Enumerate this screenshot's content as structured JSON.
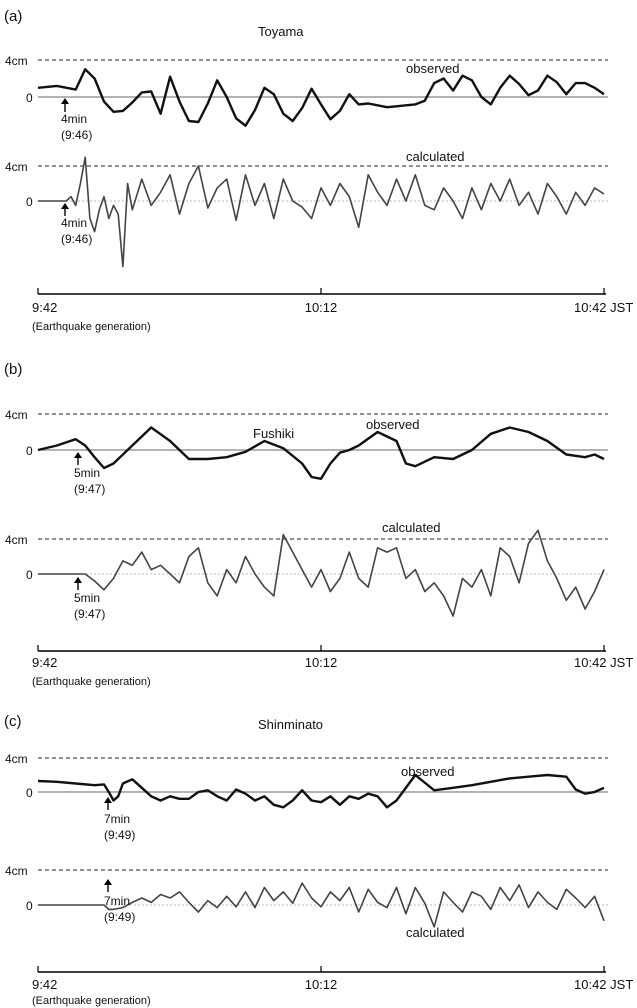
{
  "figure": {
    "panels": [
      {
        "id": "a",
        "label": "(a)",
        "station": "Toyama",
        "y_tick_top": "4cm",
        "y_tick_zero": "0",
        "observed_label": "observed",
        "calculated_label": "calculated",
        "arrival_observed": {
          "text": "4min",
          "time": "(9:46)"
        },
        "arrival_calculated": {
          "text": "4min",
          "time": "(9:46)"
        },
        "x_labels": [
          "9:42",
          "10:12",
          "10:42 JST"
        ],
        "x_note": "(Earthquake generation)"
      },
      {
        "id": "b",
        "label": "(b)",
        "station": "Fushiki",
        "y_tick_top": "4cm",
        "y_tick_zero": "0",
        "observed_label": "observed",
        "calculated_label": "calculated",
        "arrival_observed": {
          "text": "5min",
          "time": "(9:47)"
        },
        "arrival_calculated": {
          "text": "5min",
          "time": "(9:47)"
        },
        "x_labels": [
          "9:42",
          "10:12",
          "10:42 JST"
        ],
        "x_note": "(Earthquake generation)"
      },
      {
        "id": "c",
        "label": "(c)",
        "station": "Shinminato",
        "y_tick_top": "4cm",
        "y_tick_zero": "0",
        "observed_label": "observed",
        "calculated_label": "calculated",
        "arrival_observed": {
          "text": "7min",
          "time": "(9:49)"
        },
        "arrival_calculated": {
          "text": "7min",
          "time": "(9:49)"
        },
        "x_labels": [
          "9:42",
          "10:12",
          "10:42 JST"
        ],
        "x_note": "(Earthquake generation)"
      }
    ]
  },
  "chart_data": [
    {
      "type": "line",
      "title": "Toyama",
      "x_unit": "min after 9:42",
      "xlim": [
        0,
        60
      ],
      "y_unit": "cm",
      "x_ticks": [
        "9:42",
        "10:12",
        "10:42 JST"
      ],
      "series": [
        {
          "name": "observed",
          "x": [
            0,
            2,
            4,
            5,
            6,
            7,
            8,
            9,
            10,
            11,
            12,
            13,
            14,
            15,
            16,
            17,
            18,
            19,
            20,
            21,
            22,
            23,
            24,
            25,
            26,
            27,
            28,
            29,
            30,
            31,
            32,
            33,
            34,
            35,
            36,
            37,
            38,
            39,
            40,
            41,
            42,
            43,
            44,
            45,
            46,
            47,
            48,
            49,
            50,
            51,
            52,
            53,
            54,
            55,
            56,
            57,
            58,
            59,
            60
          ],
          "y": [
            1.0,
            1.2,
            0.8,
            3.0,
            2.0,
            -0.5,
            -1.6,
            -1.5,
            -0.6,
            0.5,
            0.6,
            -1.8,
            2.2,
            -0.5,
            -2.6,
            -2.7,
            -0.7,
            1.8,
            0.0,
            -2.3,
            -3.1,
            -1.4,
            1.0,
            0.3,
            -1.8,
            -2.6,
            -1.2,
            0.9,
            -0.8,
            -2.4,
            -1.5,
            0.3,
            -0.8,
            -0.7,
            -0.9,
            -1.1,
            -1.0,
            -0.9,
            -0.8,
            -0.4,
            1.5,
            2.0,
            0.7,
            2.3,
            1.8,
            0.0,
            -0.8,
            1.0,
            2.3,
            1.4,
            0.2,
            0.7,
            2.3,
            1.6,
            0.3,
            1.5,
            1.5,
            1.0,
            0.3
          ]
        },
        {
          "name": "calculated",
          "x": [
            0,
            1,
            2,
            3,
            3.5,
            4,
            4.5,
            5,
            5.5,
            6,
            6.5,
            7,
            7.5,
            8,
            8.5,
            9,
            9.5,
            10,
            11,
            12,
            13,
            14,
            15,
            16,
            17,
            18,
            19,
            20,
            21,
            22,
            23,
            24,
            25,
            26,
            27,
            28,
            29,
            30,
            31,
            32,
            33,
            34,
            35,
            36,
            37,
            38,
            39,
            40,
            41,
            42,
            43,
            44,
            45,
            46,
            47,
            48,
            49,
            50,
            51,
            52,
            53,
            54,
            55,
            56,
            57,
            58,
            59,
            60
          ],
          "y": [
            0,
            0,
            0,
            0,
            0.5,
            -0.5,
            2.0,
            5.0,
            -2.0,
            -3.5,
            -1.0,
            0.5,
            -2.0,
            -0.5,
            -1.5,
            -7.5,
            2.0,
            -1.0,
            2.5,
            -0.5,
            1.0,
            3.0,
            -1.5,
            2.0,
            4.0,
            -0.8,
            1.5,
            2.5,
            -2.2,
            3.0,
            -0.5,
            2.0,
            -2.0,
            2.5,
            0.0,
            -0.7,
            -2.0,
            1.5,
            -0.5,
            2.0,
            0.5,
            -3.0,
            3.0,
            1.0,
            -0.5,
            2.5,
            0.0,
            3.0,
            -0.5,
            -1.0,
            1.5,
            0.0,
            -2.0,
            1.5,
            -1.0,
            2.0,
            0.0,
            2.5,
            -0.5,
            1.0,
            -1.5,
            2.0,
            0.5,
            -1.5,
            1.0,
            -0.5,
            1.5,
            0.8
          ]
        }
      ]
    },
    {
      "type": "line",
      "title": "Fushiki",
      "x_unit": "min after 9:42",
      "xlim": [
        0,
        60
      ],
      "y_unit": "cm",
      "x_ticks": [
        "9:42",
        "10:12",
        "10:42 JST"
      ],
      "series": [
        {
          "name": "observed",
          "x": [
            0,
            2,
            4,
            5,
            6,
            7,
            8,
            10,
            12,
            14,
            16,
            18,
            20,
            22,
            24,
            26,
            28,
            29,
            30,
            31,
            32,
            33,
            34,
            36,
            38,
            39,
            40,
            42,
            44,
            46,
            48,
            50,
            52,
            54,
            56,
            58,
            59,
            60
          ],
          "y": [
            0,
            0.5,
            1.2,
            0.5,
            -0.8,
            -2.0,
            -1.5,
            0.5,
            2.5,
            1.0,
            -1.0,
            -1.0,
            -0.8,
            -0.2,
            1.0,
            0.2,
            -1.5,
            -3.0,
            -3.2,
            -1.5,
            -0.3,
            0.0,
            0.5,
            2.0,
            1.0,
            -1.5,
            -1.8,
            -0.8,
            -1.0,
            0.0,
            1.8,
            2.5,
            2.0,
            1.0,
            -0.5,
            -0.8,
            -0.5,
            -1.0
          ]
        },
        {
          "name": "calculated",
          "x": [
            0,
            2,
            4,
            5,
            6,
            7,
            8,
            9,
            10,
            11,
            12,
            13,
            14,
            15,
            16,
            17,
            18,
            19,
            20,
            21,
            22,
            23,
            24,
            25,
            26,
            27,
            28,
            29,
            30,
            31,
            32,
            33,
            34,
            35,
            36,
            37,
            38,
            39,
            40,
            41,
            42,
            43,
            44,
            45,
            46,
            47,
            48,
            49,
            50,
            51,
            52,
            53,
            54,
            55,
            56,
            57,
            58,
            59,
            60
          ],
          "y": [
            0,
            0,
            0,
            0,
            -0.8,
            -1.8,
            -0.5,
            1.5,
            1.0,
            2.5,
            0.5,
            1.0,
            0.0,
            -1.0,
            2.0,
            3.0,
            -1.0,
            -2.5,
            0.5,
            -1.0,
            2.0,
            0.0,
            -1.5,
            -2.5,
            4.5,
            2.5,
            0.5,
            -1.5,
            0.5,
            -2.0,
            -0.5,
            2.5,
            -0.5,
            -1.5,
            3.0,
            2.5,
            3.0,
            -0.5,
            0.5,
            -2.0,
            -1.0,
            -2.5,
            -4.8,
            -0.5,
            -1.5,
            0.5,
            -2.5,
            3.0,
            2.0,
            -1.0,
            3.5,
            5.0,
            1.5,
            -0.5,
            -3.0,
            -1.5,
            -4.0,
            -2.0,
            0.5
          ]
        }
      ]
    },
    {
      "type": "line",
      "title": "Shinminato",
      "x_unit": "min after 9:42",
      "xlim": [
        0,
        60
      ],
      "y_unit": "cm",
      "x_ticks": [
        "9:42",
        "10:12",
        "10:42 JST"
      ],
      "series": [
        {
          "name": "observed",
          "x": [
            0,
            2,
            4,
            6,
            7,
            7.5,
            8,
            8.5,
            9,
            10,
            11,
            12,
            13,
            14,
            15,
            16,
            17,
            18,
            19,
            20,
            21,
            22,
            23,
            24,
            25,
            26,
            27,
            28,
            29,
            30,
            31,
            32,
            33,
            34,
            35,
            36,
            37,
            38,
            40,
            42,
            44,
            46,
            48,
            50,
            52,
            54,
            56,
            57,
            58,
            59,
            60
          ],
          "y": [
            1.3,
            1.2,
            1.0,
            0.8,
            0.9,
            0.0,
            -1.0,
            -0.5,
            1.0,
            1.5,
            0.5,
            -0.5,
            -1.0,
            -0.5,
            -0.8,
            -0.8,
            0.0,
            0.2,
            -0.5,
            -1.0,
            0.3,
            -0.2,
            -1.0,
            -0.5,
            -1.5,
            -1.8,
            -1.0,
            0.2,
            -1.0,
            -1.2,
            -0.5,
            -1.5,
            -0.5,
            -0.8,
            -0.2,
            -0.5,
            -1.8,
            -1.0,
            2.0,
            0.2,
            0.5,
            0.8,
            1.2,
            1.6,
            1.8,
            2.0,
            1.8,
            0.3,
            -0.2,
            0.0,
            0.5
          ]
        },
        {
          "name": "calculated",
          "x": [
            0,
            2,
            4,
            6,
            7,
            7.5,
            8,
            9,
            10,
            11,
            12,
            13,
            14,
            15,
            16,
            17,
            18,
            19,
            20,
            21,
            22,
            23,
            24,
            25,
            26,
            27,
            28,
            29,
            30,
            31,
            32,
            33,
            34,
            35,
            36,
            37,
            38,
            39,
            40,
            41,
            42,
            43,
            44,
            45,
            46,
            47,
            48,
            49,
            50,
            51,
            52,
            53,
            54,
            55,
            56,
            57,
            58,
            59,
            60
          ],
          "y": [
            0,
            0,
            0,
            0,
            0,
            -0.5,
            -0.5,
            -0.3,
            0.3,
            0.8,
            0.3,
            1.2,
            0.8,
            1.5,
            0.3,
            -0.8,
            0.5,
            -0.3,
            1.0,
            -0.2,
            1.5,
            -0.3,
            2.0,
            0.5,
            1.5,
            0.2,
            2.5,
            0.8,
            -0.2,
            1.5,
            0.5,
            2.0,
            -0.8,
            1.8,
            0.3,
            -0.3,
            2.0,
            -1.0,
            2.0,
            0.2,
            -2.5,
            1.5,
            0.3,
            -0.8,
            1.5,
            1.0,
            -0.5,
            2.0,
            0.5,
            2.3,
            -0.3,
            1.5,
            0.3,
            -0.5,
            1.8,
            0.8,
            -0.3,
            1.0,
            -1.8
          ]
        }
      ]
    }
  ]
}
